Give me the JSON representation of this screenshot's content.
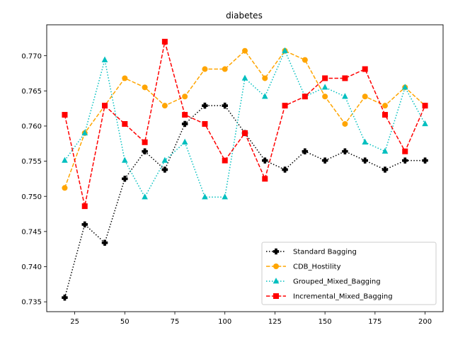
{
  "chart_data": {
    "type": "line",
    "title": "diabetes",
    "xlabel": "",
    "ylabel": "",
    "xlim": [
      11,
      209
    ],
    "ylim": [
      0.7336,
      0.7744
    ],
    "xticks": [
      25,
      50,
      75,
      100,
      125,
      150,
      175,
      200
    ],
    "yticks": [
      0.735,
      0.74,
      0.745,
      0.75,
      0.755,
      0.76,
      0.765,
      0.77
    ],
    "ytick_labels": [
      "0.735",
      "0.740",
      "0.745",
      "0.750",
      "0.755",
      "0.760",
      "0.765",
      "0.770"
    ],
    "xtick_labels": [
      "25",
      "50",
      "75",
      "100",
      "125",
      "150",
      "175",
      "200"
    ],
    "grid": false,
    "legend_position": "lower-right",
    "series": [
      {
        "name": "Standard Bagging",
        "color": "#000000",
        "linestyle": "dotted",
        "marker": "plus",
        "x": [
          20,
          30,
          40,
          50,
          60,
          70,
          80,
          90,
          100,
          110,
          120,
          130,
          140,
          150,
          160,
          170,
          180,
          190,
          200
        ],
        "y": [
          0.7356,
          0.746,
          0.7434,
          0.7525,
          0.7564,
          0.7538,
          0.7603,
          0.7629,
          0.7629,
          0.759,
          0.7551,
          0.7538,
          0.7564,
          0.7551,
          0.7564,
          0.7551,
          0.7538,
          0.7551,
          0.7551
        ]
      },
      {
        "name": "CDB_Hostility",
        "color": "#ffa500",
        "linestyle": "dashed",
        "marker": "circle",
        "x": [
          20,
          30,
          40,
          50,
          60,
          70,
          80,
          90,
          100,
          110,
          120,
          130,
          140,
          150,
          160,
          170,
          180,
          190,
          200
        ],
        "y": [
          0.7512,
          0.759,
          0.7629,
          0.7668,
          0.7655,
          0.7629,
          0.7642,
          0.7681,
          0.7681,
          0.7707,
          0.7668,
          0.7707,
          0.7694,
          0.7642,
          0.7603,
          0.7642,
          0.7629,
          0.7655,
          0.7629
        ]
      },
      {
        "name": "Grouped_Mixed_Bagging",
        "color": "#00bfbf",
        "linestyle": "dotted",
        "marker": "triangle",
        "x": [
          20,
          30,
          40,
          50,
          60,
          70,
          80,
          90,
          100,
          110,
          120,
          130,
          140,
          150,
          160,
          170,
          180,
          190,
          200
        ],
        "y": [
          0.7551,
          0.759,
          0.7694,
          0.7551,
          0.7499,
          0.7551,
          0.7577,
          0.7499,
          0.7499,
          0.7668,
          0.7642,
          0.7707,
          0.7642,
          0.7655,
          0.7642,
          0.7577,
          0.7564,
          0.7655,
          0.7603
        ]
      },
      {
        "name": "Incremental_Mixed_Bagging",
        "color": "#ff0000",
        "linestyle": "dashed",
        "marker": "square",
        "x": [
          20,
          30,
          40,
          50,
          60,
          70,
          80,
          90,
          100,
          110,
          120,
          130,
          140,
          150,
          160,
          170,
          180,
          190,
          200
        ],
        "y": [
          0.7616,
          0.7486,
          0.7629,
          0.7603,
          0.7577,
          0.772,
          0.7616,
          0.7603,
          0.7551,
          0.759,
          0.7525,
          0.7629,
          0.7642,
          0.7668,
          0.7668,
          0.7681,
          0.7616,
          0.7564,
          0.7629
        ]
      }
    ]
  }
}
